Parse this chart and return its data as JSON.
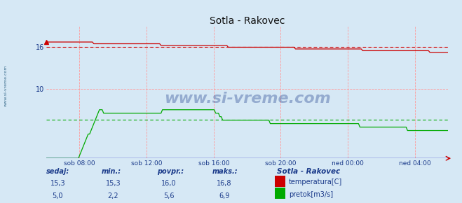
{
  "title": "Sotla - Rakovec",
  "bg_color": "#d6e8f5",
  "grid_color": "#ff9999",
  "x_tick_labels": [
    "sob 08:00",
    "sob 12:00",
    "sob 16:00",
    "sob 20:00",
    "ned 00:00",
    "ned 04:00"
  ],
  "x_tick_positions": [
    0.083,
    0.25,
    0.417,
    0.583,
    0.75,
    0.917
  ],
  "y_ticks": [
    10,
    16
  ],
  "ylim": [
    0,
    19
  ],
  "temp_color": "#cc0000",
  "flow_color": "#00aa00",
  "avg_temp": 16.0,
  "avg_flow": 5.6,
  "watermark": "www.si-vreme.com",
  "watermark_color": "#1a3a8a",
  "watermark_alpha": 0.35,
  "text_color": "#1a3a8a",
  "footer_labels": [
    "sedaj:",
    "min.:",
    "povpr.:",
    "maks.:"
  ],
  "footer_temp": [
    "15,3",
    "15,3",
    "16,0",
    "16,8"
  ],
  "footer_flow": [
    "5,0",
    "2,2",
    "5,6",
    "6,9"
  ],
  "legend_title": "Sotla - Rakovec",
  "legend_temp": "temperatura[C]",
  "legend_flow": "pretok[m3/s]",
  "sidebar_text": "www.si-vreme.com"
}
